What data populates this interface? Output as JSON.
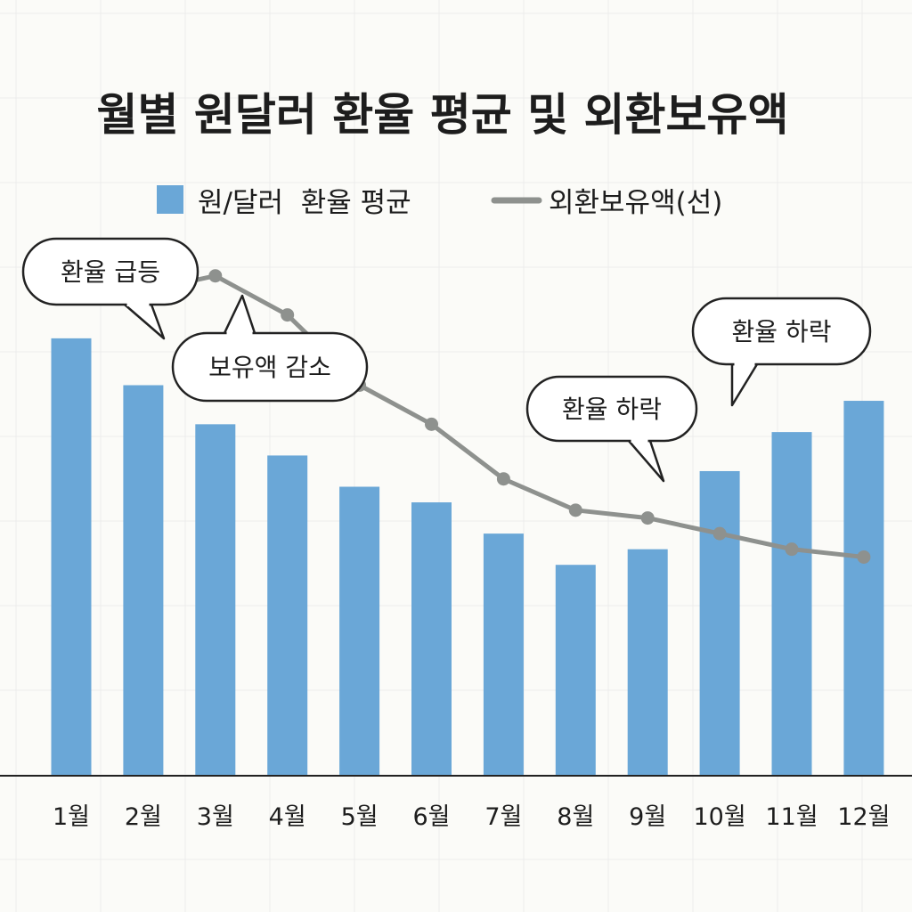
{
  "chart_data": {
    "type": "bar",
    "title": "월별 원달러 환율 평균 및 외환보유액",
    "categories": [
      "1월",
      "2월",
      "3월",
      "4월",
      "5월",
      "6월",
      "7월",
      "8월",
      "9월",
      "10월",
      "11월",
      "12월"
    ],
    "series": [
      {
        "name": "원/달러  환율 평균",
        "type": "bar",
        "color": "#6aa7d7",
        "values": [
          0.56,
          0.5,
          0.45,
          0.41,
          0.37,
          0.35,
          0.31,
          0.27,
          0.29,
          0.39,
          0.44,
          0.48
        ]
      },
      {
        "name": "외환보유액(선)",
        "type": "line",
        "color": "#8e918e",
        "values": [
          null,
          null,
          0.64,
          0.59,
          0.5,
          0.45,
          0.38,
          0.34,
          0.33,
          0.31,
          0.29,
          0.28
        ]
      }
    ],
    "line_start_partial": 0.6,
    "ylim": [
      0,
      1
    ],
    "grid": true,
    "legend_position": "top",
    "annotations": [
      {
        "text": "환율 급등",
        "target": "1월"
      },
      {
        "text": "보유액 감소",
        "target": "3월"
      },
      {
        "text": "환율 하락",
        "target": "9월"
      },
      {
        "text": "환율 하락",
        "target": "11월"
      }
    ]
  }
}
